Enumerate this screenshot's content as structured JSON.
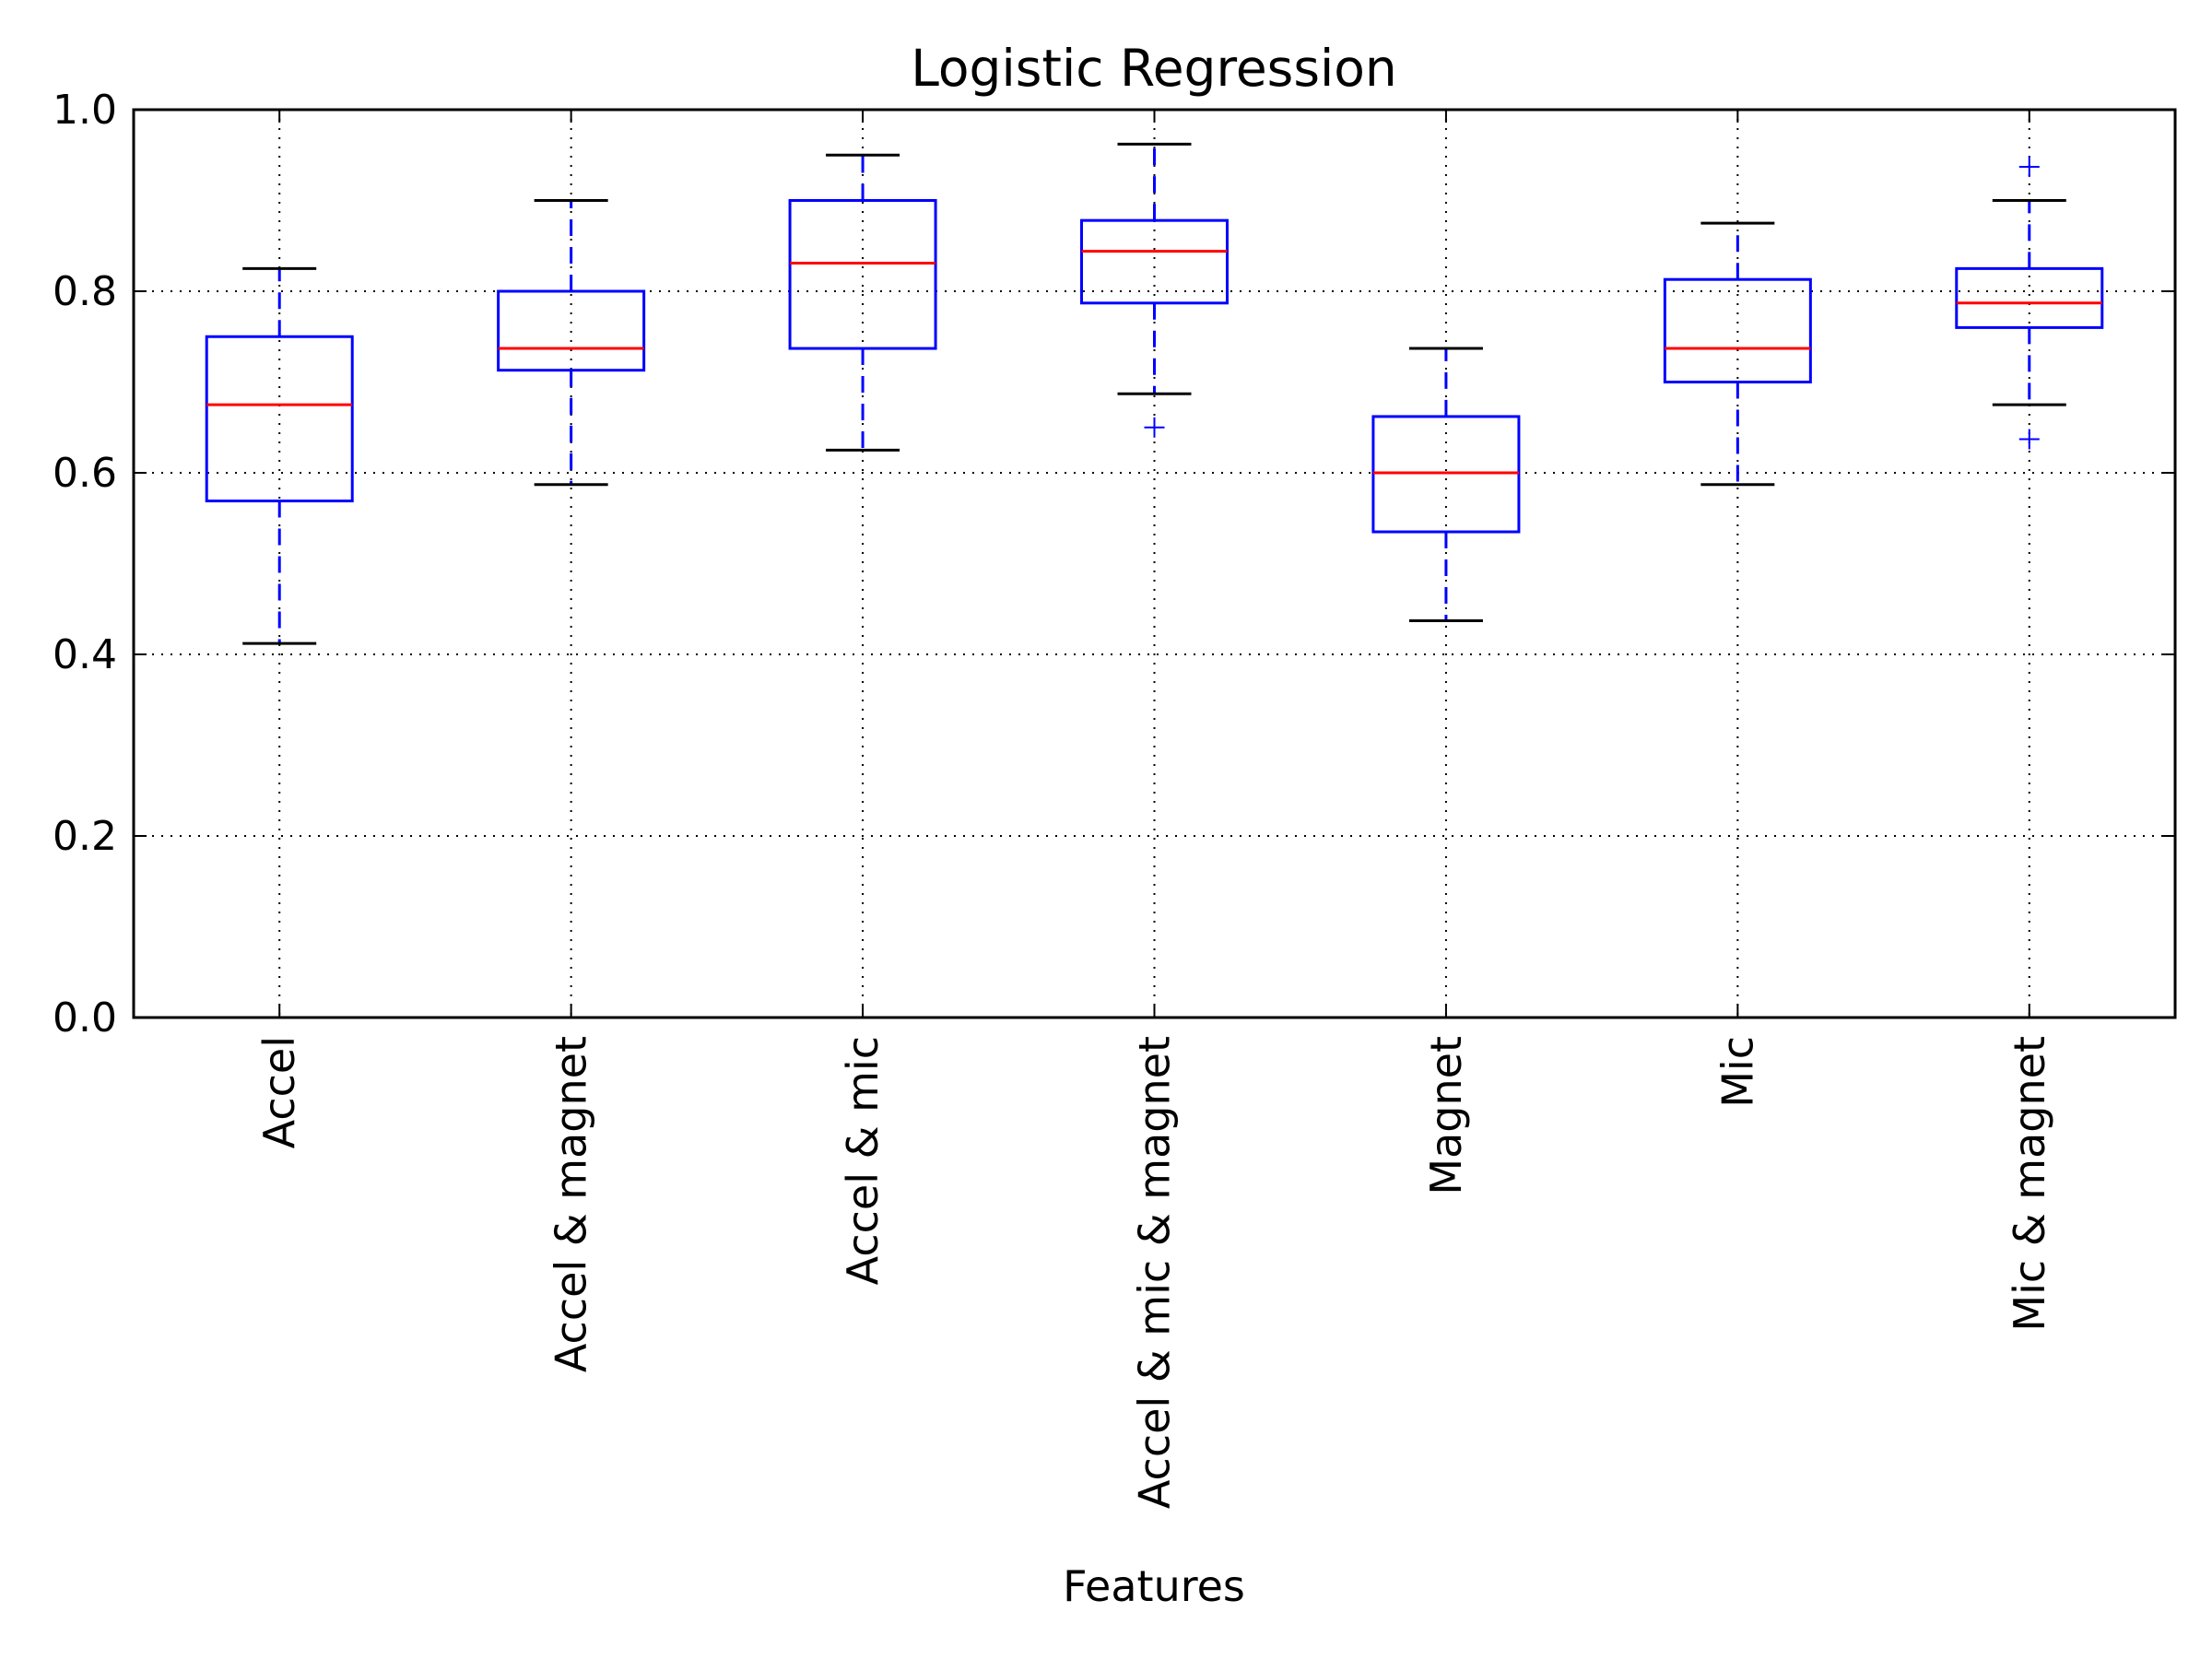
{
  "chart_data": {
    "type": "box",
    "title": "Logistic Regression",
    "xlabel": "Features",
    "ylabel": "",
    "ylim": [
      0.0,
      1.0
    ],
    "yticks": [
      "0.0",
      "0.2",
      "0.4",
      "0.6",
      "0.8",
      "1.0"
    ],
    "grid": true,
    "categories": [
      "Accel",
      "Accel & magnet",
      "Accel & mic",
      "Accel & mic & magnet",
      "Magnet",
      "Mic",
      "Mic & magnet"
    ],
    "boxes": [
      {
        "whisker_low": 0.412,
        "q1": 0.569,
        "median": 0.675,
        "q3": 0.75,
        "whisker_high": 0.825,
        "outliers": []
      },
      {
        "whisker_low": 0.587,
        "q1": 0.713,
        "median": 0.737,
        "q3": 0.8,
        "whisker_high": 0.9,
        "outliers": []
      },
      {
        "whisker_low": 0.625,
        "q1": 0.737,
        "median": 0.831,
        "q3": 0.9,
        "whisker_high": 0.95,
        "outliers": []
      },
      {
        "whisker_low": 0.687,
        "q1": 0.787,
        "median": 0.844,
        "q3": 0.878,
        "whisker_high": 0.962,
        "outliers": [
          0.65
        ]
      },
      {
        "whisker_low": 0.437,
        "q1": 0.535,
        "median": 0.6,
        "q3": 0.662,
        "whisker_high": 0.737,
        "outliers": []
      },
      {
        "whisker_low": 0.587,
        "q1": 0.7,
        "median": 0.737,
        "q3": 0.813,
        "whisker_high": 0.875,
        "outliers": []
      },
      {
        "whisker_low": 0.675,
        "q1": 0.76,
        "median": 0.787,
        "q3": 0.825,
        "whisker_high": 0.9,
        "outliers": [
          0.637,
          0.937
        ]
      }
    ],
    "colors": {
      "box": "#0000ff",
      "median": "#ff0000",
      "whisker_cap": "#000000",
      "outlier": "#0000ff",
      "grid": "#000000"
    }
  }
}
